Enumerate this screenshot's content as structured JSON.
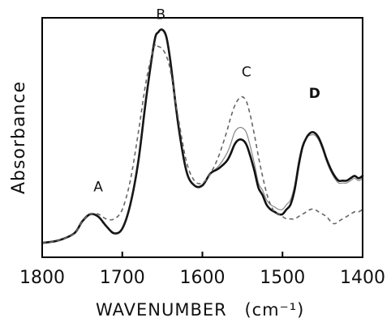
{
  "chart_data": {
    "type": "line",
    "title": "",
    "xlabel": "WAVENUMBER",
    "xlabel_unit": "(cm⁻¹)",
    "ylabel": "Absorbance",
    "xlim": [
      1800,
      1400
    ],
    "ylim": [
      0,
      1
    ],
    "x_reversed": true,
    "grid": false,
    "x_ticks": [
      1800,
      1700,
      1600,
      1500,
      1400
    ],
    "x_tick_labels": [
      "1800",
      "1700",
      "1600",
      "1500",
      "1400"
    ],
    "annotations": [
      {
        "text": "A",
        "x": 1730,
        "y": 0.275,
        "bold": false
      },
      {
        "text": "B",
        "x": 1652,
        "y": 0.995,
        "bold": false
      },
      {
        "text": "C",
        "x": 1545,
        "y": 0.755,
        "bold": false
      },
      {
        "text": "D",
        "x": 1460,
        "y": 0.665,
        "bold": true
      }
    ],
    "series": [
      {
        "style": "solid",
        "x": [
          1800,
          1780,
          1760,
          1750,
          1740,
          1730,
          1720,
          1710,
          1700,
          1690,
          1680,
          1670,
          1660,
          1655,
          1650,
          1645,
          1640,
          1630,
          1620,
          1610,
          1600,
          1590,
          1580,
          1570,
          1565,
          1560,
          1555,
          1550,
          1545,
          1540,
          1535,
          1530,
          1525,
          1520,
          1515,
          1510,
          1505,
          1500,
          1495,
          1490,
          1485,
          1480,
          1475,
          1470,
          1465,
          1460,
          1455,
          1450,
          1445,
          1440,
          1435,
          1430,
          1425,
          1420,
          1415,
          1410,
          1405,
          1400
        ],
        "y": [
          0.06,
          0.07,
          0.1,
          0.15,
          0.18,
          0.17,
          0.13,
          0.1,
          0.12,
          0.22,
          0.4,
          0.67,
          0.9,
          0.94,
          0.95,
          0.92,
          0.82,
          0.55,
          0.36,
          0.3,
          0.3,
          0.35,
          0.37,
          0.4,
          0.43,
          0.47,
          0.49,
          0.49,
          0.47,
          0.42,
          0.36,
          0.29,
          0.26,
          0.22,
          0.2,
          0.19,
          0.18,
          0.18,
          0.2,
          0.22,
          0.28,
          0.38,
          0.46,
          0.5,
          0.52,
          0.52,
          0.5,
          0.46,
          0.41,
          0.37,
          0.34,
          0.32,
          0.32,
          0.32,
          0.33,
          0.34,
          0.33,
          0.34
        ]
      },
      {
        "style": "solid-thin",
        "x": [
          1800,
          1780,
          1760,
          1750,
          1740,
          1730,
          1720,
          1710,
          1700,
          1690,
          1680,
          1670,
          1660,
          1655,
          1650,
          1645,
          1640,
          1630,
          1620,
          1610,
          1600,
          1590,
          1580,
          1570,
          1565,
          1560,
          1555,
          1550,
          1545,
          1540,
          1535,
          1530,
          1525,
          1520,
          1515,
          1510,
          1505,
          1500,
          1495,
          1490,
          1485,
          1480,
          1475,
          1470,
          1465,
          1460,
          1455,
          1450,
          1445,
          1440,
          1435,
          1430,
          1425,
          1420,
          1415,
          1410,
          1405,
          1400
        ],
        "y": [
          0.06,
          0.07,
          0.1,
          0.15,
          0.18,
          0.17,
          0.13,
          0.1,
          0.12,
          0.22,
          0.4,
          0.67,
          0.9,
          0.94,
          0.95,
          0.92,
          0.82,
          0.55,
          0.36,
          0.3,
          0.3,
          0.35,
          0.38,
          0.43,
          0.47,
          0.52,
          0.54,
          0.54,
          0.52,
          0.46,
          0.39,
          0.31,
          0.28,
          0.24,
          0.22,
          0.21,
          0.2,
          0.2,
          0.22,
          0.24,
          0.3,
          0.4,
          0.47,
          0.5,
          0.51,
          0.51,
          0.49,
          0.45,
          0.4,
          0.36,
          0.33,
          0.31,
          0.31,
          0.31,
          0.32,
          0.33,
          0.32,
          0.33
        ]
      },
      {
        "style": "dashed",
        "x": [
          1800,
          1780,
          1760,
          1750,
          1740,
          1730,
          1720,
          1710,
          1700,
          1690,
          1680,
          1670,
          1660,
          1655,
          1650,
          1645,
          1640,
          1630,
          1620,
          1610,
          1600,
          1590,
          1580,
          1570,
          1565,
          1560,
          1555,
          1550,
          1545,
          1540,
          1535,
          1530,
          1525,
          1520,
          1515,
          1510,
          1505,
          1500,
          1495,
          1490,
          1485,
          1480,
          1475,
          1470,
          1465,
          1460,
          1455,
          1450,
          1445,
          1440,
          1435,
          1430,
          1425,
          1420,
          1415,
          1410,
          1405,
          1400
        ],
        "y": [
          0.06,
          0.07,
          0.1,
          0.15,
          0.18,
          0.18,
          0.16,
          0.16,
          0.2,
          0.32,
          0.52,
          0.74,
          0.88,
          0.88,
          0.87,
          0.84,
          0.78,
          0.58,
          0.4,
          0.32,
          0.31,
          0.35,
          0.42,
          0.52,
          0.58,
          0.63,
          0.66,
          0.67,
          0.65,
          0.59,
          0.51,
          0.42,
          0.34,
          0.27,
          0.22,
          0.19,
          0.18,
          0.17,
          0.16,
          0.16,
          0.16,
          0.17,
          0.18,
          0.19,
          0.2,
          0.2,
          0.19,
          0.18,
          0.17,
          0.15,
          0.14,
          0.15,
          0.16,
          0.17,
          0.18,
          0.19,
          0.19,
          0.2
        ]
      }
    ]
  }
}
